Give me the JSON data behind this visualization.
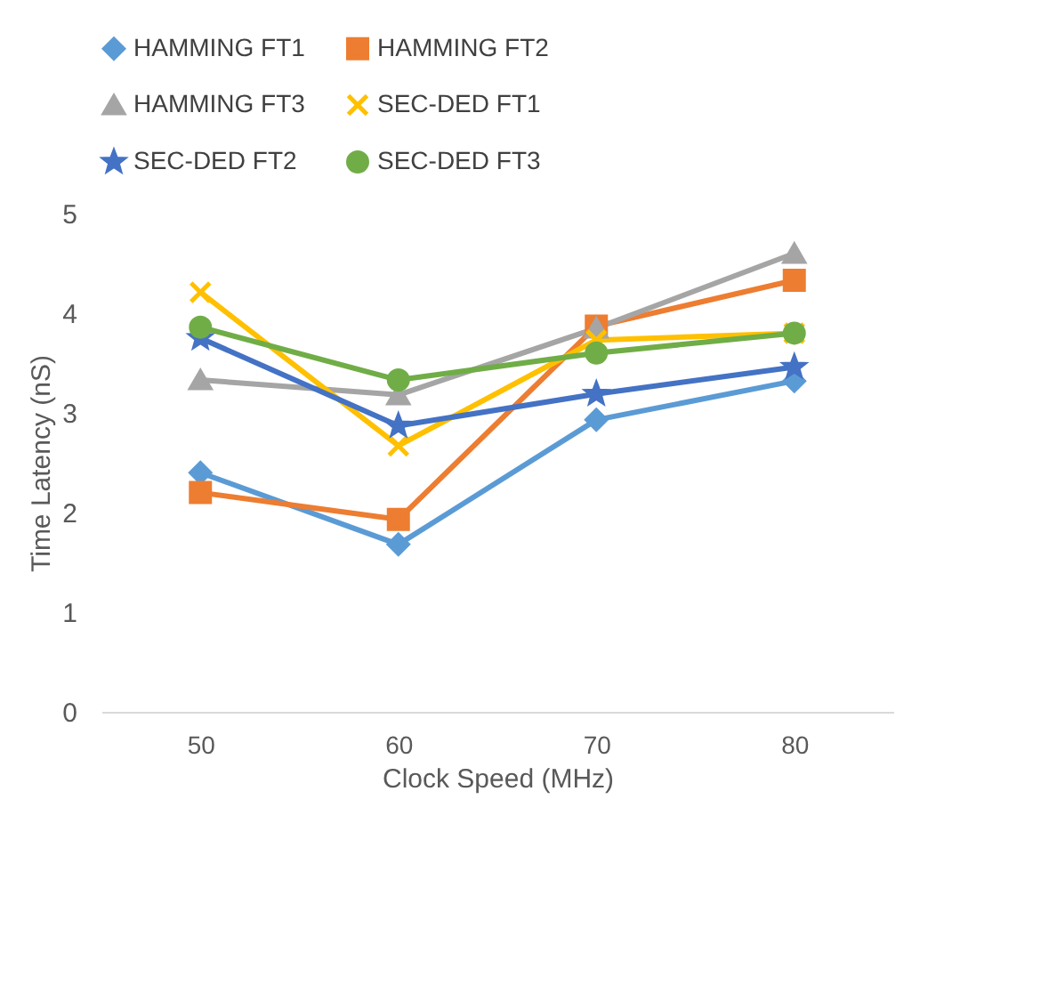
{
  "chart_data": {
    "type": "line",
    "xlabel": "Clock Speed (MHz)",
    "ylabel": "Time Latency (nS)",
    "categories": [
      "50",
      "60",
      "70",
      "80"
    ],
    "series": [
      {
        "name": "HAMMING FT1",
        "color": "#5b9bd5",
        "marker": "diamond",
        "values": [
          2.4,
          1.68,
          2.93,
          3.32
        ]
      },
      {
        "name": "HAMMING FT2",
        "color": "#ed7d31",
        "marker": "square",
        "values": [
          2.2,
          1.93,
          3.87,
          4.33
        ]
      },
      {
        "name": "HAMMING FT3",
        "color": "#a5a5a5",
        "marker": "triangle",
        "values": [
          3.33,
          3.18,
          3.85,
          4.6
        ]
      },
      {
        "name": "SEC-DED FT1",
        "color": "#ffc000",
        "marker": "cross",
        "values": [
          4.21,
          2.67,
          3.73,
          3.8
        ]
      },
      {
        "name": "SEC-DED FT2",
        "color": "#4472c4",
        "marker": "star",
        "values": [
          3.75,
          2.87,
          3.19,
          3.46
        ]
      },
      {
        "name": "SEC-DED FT3",
        "color": "#70ad47",
        "marker": "circle",
        "values": [
          3.86,
          3.33,
          3.6,
          3.8
        ]
      }
    ],
    "ylim": [
      0,
      5
    ],
    "yticks": [
      0,
      1,
      2,
      3,
      4,
      5
    ],
    "grid": false,
    "legend": "top"
  }
}
